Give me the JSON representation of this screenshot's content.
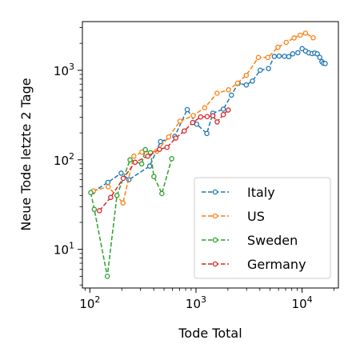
{
  "chart_data": {
    "type": "line",
    "xlabel": "Tode Total",
    "ylabel": "Neue Tode letzte 2 Tage",
    "xscale": "log",
    "yscale": "log",
    "xlim": [
      85,
      22000
    ],
    "ylim": [
      3.7,
      3500
    ],
    "xticks": [
      {
        "value": 100,
        "base": "10",
        "exp": "2"
      },
      {
        "value": 1000,
        "base": "10",
        "exp": "3"
      },
      {
        "value": 10000,
        "base": "10",
        "exp": "4"
      }
    ],
    "yticks": [
      {
        "value": 10,
        "base": "10",
        "exp": "1"
      },
      {
        "value": 100,
        "base": "10",
        "exp": "2"
      },
      {
        "value": 1000,
        "base": "10",
        "exp": "3"
      }
    ],
    "grid": false,
    "legend_position": "lower-right",
    "series": [
      {
        "name": "Italy",
        "color": "#1f77b4",
        "points": [
          [
            107,
            44
          ],
          [
            148,
            56
          ],
          [
            197,
            71
          ],
          [
            233,
            60
          ],
          [
            366,
            85
          ],
          [
            463,
            160
          ],
          [
            631,
            183
          ],
          [
            827,
            364
          ],
          [
            1016,
            250
          ],
          [
            1266,
            197
          ],
          [
            1441,
            332
          ],
          [
            1809,
            368
          ],
          [
            2158,
            528
          ],
          [
            2503,
            715
          ],
          [
            2978,
            686
          ],
          [
            3405,
            758
          ],
          [
            4032,
            1003
          ],
          [
            4825,
            1047
          ],
          [
            5476,
            1429
          ],
          [
            6077,
            1442
          ],
          [
            6820,
            1435
          ],
          [
            7503,
            1422
          ],
          [
            8165,
            1528
          ],
          [
            9134,
            1572
          ],
          [
            10023,
            1746
          ],
          [
            10779,
            1645
          ],
          [
            11591,
            1568
          ],
          [
            12428,
            1537
          ],
          [
            13155,
            1557
          ],
          [
            13915,
            1528
          ],
          [
            14681,
            1394
          ],
          [
            15362,
            1250
          ],
          [
            15887,
            1200
          ],
          [
            16523,
            1190
          ]
        ]
      },
      {
        "name": "US",
        "color": "#ff7f0e",
        "points": [
          [
            108,
            45
          ],
          [
            149,
            50
          ],
          [
            205,
            33
          ],
          [
            260,
            110
          ],
          [
            309,
            122
          ],
          [
            427,
            125
          ],
          [
            553,
            180
          ],
          [
            707,
            270
          ],
          [
            942,
            312
          ],
          [
            1209,
            382
          ],
          [
            1581,
            555
          ],
          [
            2026,
            605
          ],
          [
            2467,
            720
          ],
          [
            2978,
            880
          ],
          [
            3873,
            1390
          ],
          [
            4757,
            1390
          ],
          [
            5926,
            1810
          ],
          [
            7087,
            2050
          ],
          [
            8407,
            2300
          ],
          [
            9619,
            2470
          ],
          [
            10783,
            2600
          ],
          [
            12722,
            2310
          ]
        ]
      },
      {
        "name": "Sweden",
        "color": "#2ca02c",
        "points": [
          [
            102,
            43
          ],
          [
            110,
            28
          ],
          [
            146,
            5
          ],
          [
            180,
            40
          ],
          [
            239,
            100
          ],
          [
            308,
            90
          ],
          [
            333,
            130
          ],
          [
            373,
            120
          ],
          [
            401,
            65
          ],
          [
            477,
            42
          ],
          [
            591,
            103
          ]
        ]
      },
      {
        "name": "Germany",
        "color": "#d62728",
        "points": [
          [
            123,
            27
          ],
          [
            157,
            38
          ],
          [
            206,
            62
          ],
          [
            267,
            94
          ],
          [
            351,
            110
          ],
          [
            453,
            131
          ],
          [
            533,
            138
          ],
          [
            645,
            175
          ],
          [
            775,
            210
          ],
          [
            931,
            261
          ],
          [
            1107,
            301
          ],
          [
            1275,
            304
          ],
          [
            1444,
            311
          ],
          [
            1584,
            265
          ],
          [
            1810,
            320
          ],
          [
            2016,
            360
          ]
        ]
      }
    ]
  }
}
